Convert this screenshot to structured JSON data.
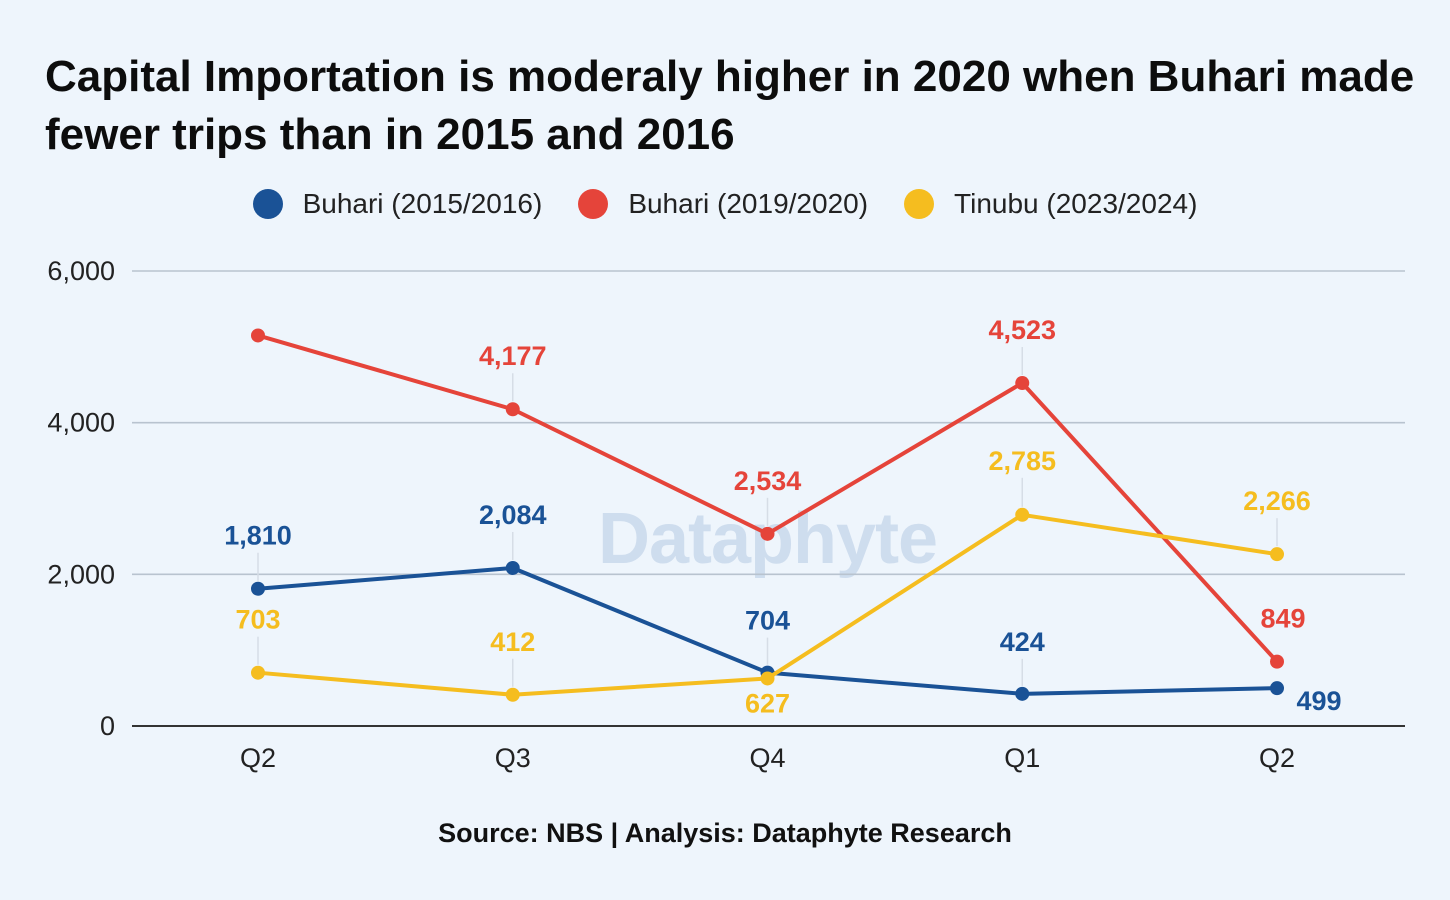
{
  "title": "Capital Importation is moderaly higher in 2020 when Buhari made fewer trips than in 2015 and 2016",
  "source": "Source: NBS | Analysis: Dataphyte Research",
  "watermark": "Dataphyte",
  "chart_data": {
    "type": "line",
    "categories": [
      "Q2",
      "Q3",
      "Q4",
      "Q1",
      "Q2"
    ],
    "ylim": [
      0,
      6000
    ],
    "yticks": [
      0,
      2000,
      4000,
      6000
    ],
    "ytick_labels": [
      "0",
      "2,000",
      "4,000",
      "6,000"
    ],
    "grid": true,
    "legend_position": "top-center",
    "series": [
      {
        "name": "Buhari (2015/2016)",
        "color": "#1a5296",
        "values": [
          1810,
          2084,
          704,
          424,
          499
        ],
        "labels": [
          "1,810",
          "2,084",
          "704",
          "424",
          "499"
        ]
      },
      {
        "name": "Buhari (2019/2020)",
        "color": "#e5443a",
        "values": [
          5150,
          4177,
          2534,
          4523,
          849
        ],
        "labels": [
          "",
          "4,177",
          "2,534",
          "4,523",
          "849"
        ]
      },
      {
        "name": "Tinubu (2023/2024)",
        "color": "#f5bd1f",
        "values": [
          703,
          412,
          627,
          2785,
          2266
        ],
        "labels": [
          "703",
          "412",
          "627",
          "2,785",
          "2,266"
        ]
      }
    ]
  }
}
